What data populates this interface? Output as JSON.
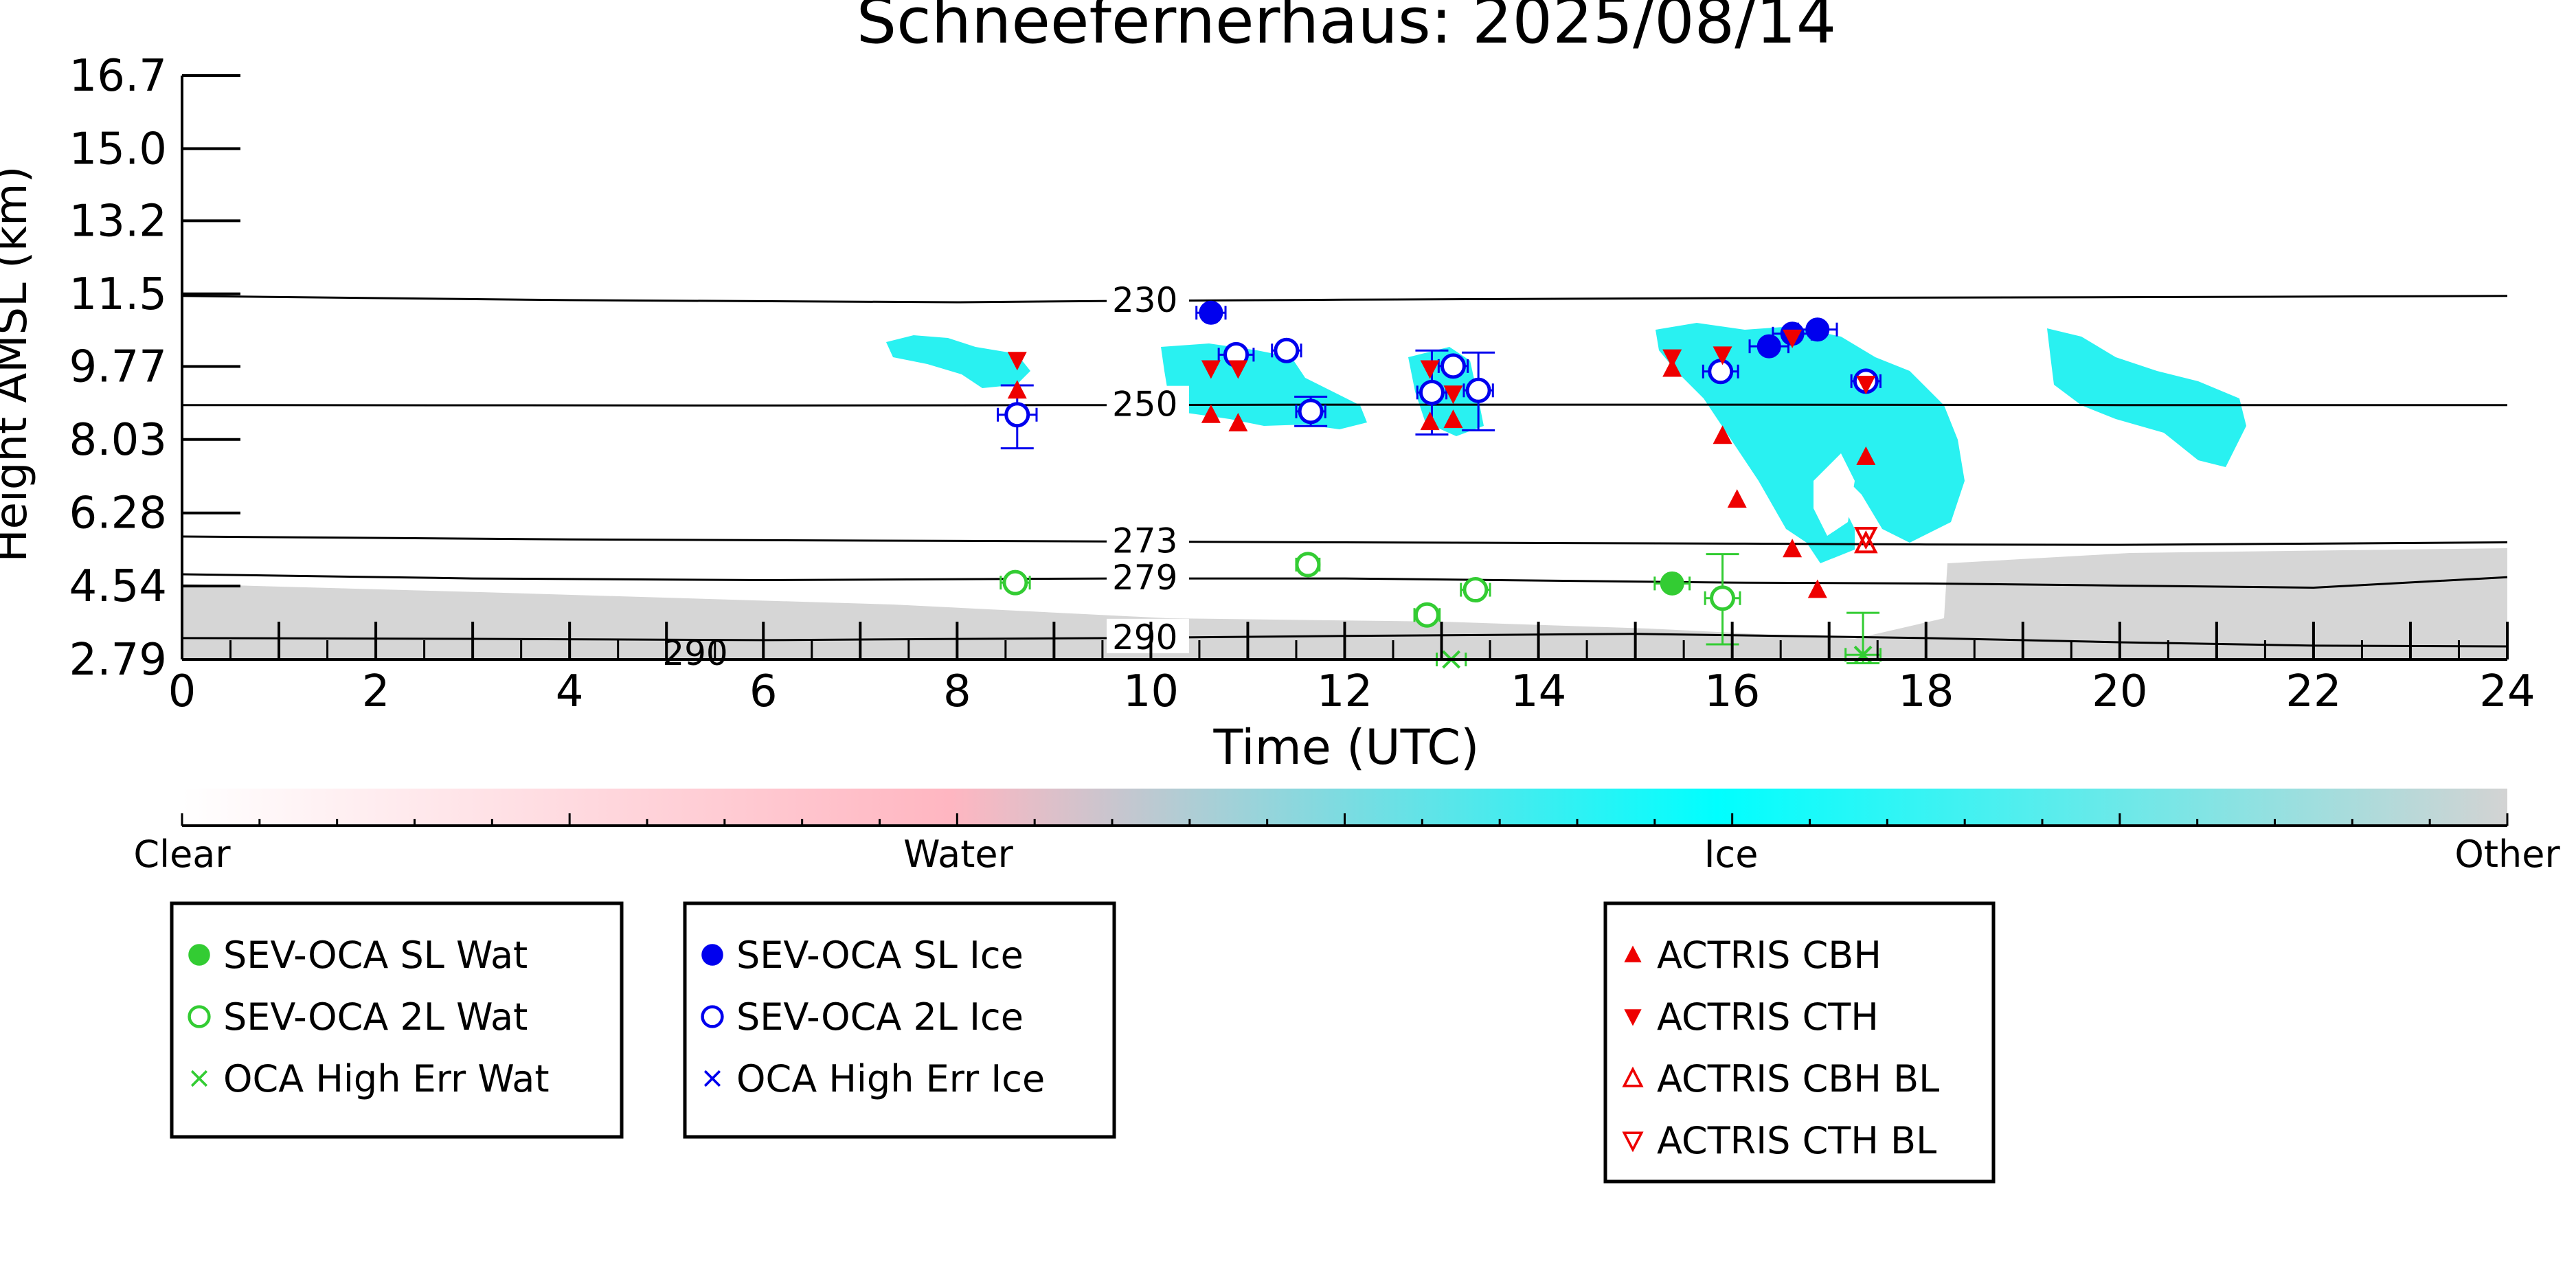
{
  "chart_data": {
    "type": "scatter",
    "title": "Schneefernerhaus: 2025/08/14",
    "xlabel": "Time (UTC)",
    "ylabel": "Height AMSL (km)",
    "xlim": [
      0,
      24
    ],
    "ylim": [
      2.79,
      16.7
    ],
    "x_ticks": [
      "0",
      "2",
      "4",
      "6",
      "8",
      "10",
      "12",
      "14",
      "16",
      "18",
      "20",
      "22",
      "24"
    ],
    "y_ticks": [
      "2.79",
      "4.54",
      "6.28",
      "8.03",
      "9.77",
      "11.5",
      "13.2",
      "15.0",
      "16.7"
    ],
    "y_tick_values": [
      2.79,
      4.54,
      6.28,
      8.03,
      9.77,
      11.5,
      13.24,
      14.96,
      16.7
    ],
    "colorbar": {
      "labels": [
        "Clear",
        "Water",
        "Ice",
        "Other"
      ],
      "colors": [
        "#ffffff",
        "#ffb6c1",
        "#00ffff",
        "#d3d3d3"
      ]
    },
    "isotherms": [
      {
        "label": "230",
        "x": [
          0,
          4,
          8,
          9.6,
          12,
          16,
          20,
          24
        ],
        "y": [
          11.45,
          11.35,
          11.3,
          11.33,
          11.36,
          11.4,
          11.42,
          11.45
        ]
      },
      {
        "label": "250",
        "x": [
          0,
          6,
          9.6,
          12,
          16,
          20,
          24
        ],
        "y": [
          8.85,
          8.84,
          8.85,
          8.86,
          8.86,
          8.85,
          8.85
        ]
      },
      {
        "label": "273",
        "x": [
          0,
          4,
          9.6,
          12,
          16,
          18,
          20,
          22,
          24
        ],
        "y": [
          5.72,
          5.65,
          5.6,
          5.58,
          5.55,
          5.53,
          5.52,
          5.55,
          5.58
        ]
      },
      {
        "label": "279",
        "x": [
          0,
          3,
          6,
          9.6,
          12,
          16,
          18,
          20,
          22,
          24
        ],
        "y": [
          4.82,
          4.72,
          4.68,
          4.72,
          4.72,
          4.62,
          4.6,
          4.55,
          4.5,
          4.75
        ]
      },
      {
        "label": "290",
        "x": [
          0,
          3,
          6,
          9.6,
          12,
          15,
          18,
          20,
          22,
          24
        ],
        "y": [
          3.3,
          3.28,
          3.25,
          3.3,
          3.35,
          3.4,
          3.3,
          3.2,
          3.12,
          3.1
        ]
      }
    ],
    "extra_labels": [
      {
        "text": "290",
        "x": 5.1,
        "y": 2.79
      }
    ],
    "series": [
      {
        "name": "SEV-OCA SL Wat",
        "color": "#33cc33",
        "marker": "filled-circle",
        "points": [
          {
            "x": 15.38,
            "y": 4.6,
            "xerr": 0.18
          }
        ]
      },
      {
        "name": "SEV-OCA 2L Wat",
        "color": "#33cc33",
        "marker": "open-circle",
        "points": [
          {
            "x": 8.6,
            "y": 4.62,
            "xerr": 0.15
          },
          {
            "x": 11.62,
            "y": 5.05,
            "xerr": 0.12
          },
          {
            "x": 12.85,
            "y": 3.85,
            "xerr": 0.13
          },
          {
            "x": 13.35,
            "y": 4.45,
            "xerr": 0.15
          },
          {
            "x": 15.9,
            "y": 4.25,
            "yerr_low": 1.1,
            "yerr_high": 1.05,
            "xerr": 0.18
          }
        ]
      },
      {
        "name": "OCA High Err Wat",
        "color": "#33cc33",
        "marker": "x",
        "points": [
          {
            "x": 13.1,
            "y": 2.79,
            "xerr": 0.15
          },
          {
            "x": 17.35,
            "y": 2.9,
            "yerr_low": 0.2,
            "yerr_high": 1.0,
            "xerr": 0.18
          }
        ]
      },
      {
        "name": "SEV-OCA SL Ice",
        "color": "#0000ee",
        "marker": "filled-circle",
        "points": [
          {
            "x": 10.62,
            "y": 11.05,
            "xerr": 0.15
          },
          {
            "x": 16.38,
            "y": 10.25,
            "xerr": 0.2
          },
          {
            "x": 16.62,
            "y": 10.55,
            "xerr": 0.2
          },
          {
            "x": 16.88,
            "y": 10.65,
            "xerr": 0.2
          }
        ]
      },
      {
        "name": "SEV-OCA 2L Ice",
        "color": "#0000ee",
        "marker": "open-circle",
        "points": [
          {
            "x": 8.62,
            "y": 8.62,
            "yerr_low": 0.8,
            "yerr_high": 0.7,
            "xerr": 0.2
          },
          {
            "x": 10.88,
            "y": 10.05,
            "xerr": 0.18
          },
          {
            "x": 11.4,
            "y": 10.15,
            "xerr": 0.15
          },
          {
            "x": 11.65,
            "y": 8.7,
            "yerr_low": 0.35,
            "yerr_high": 0.35,
            "xerr": 0.15
          },
          {
            "x": 12.9,
            "y": 9.15,
            "yerr_low": 1.0,
            "yerr_high": 1.0,
            "xerr": 0.15
          },
          {
            "x": 13.12,
            "y": 9.78,
            "xerr": 0.15
          },
          {
            "x": 13.38,
            "y": 9.2,
            "yerr_low": 0.95,
            "yerr_high": 0.9,
            "xerr": 0.15
          },
          {
            "x": 15.88,
            "y": 9.65,
            "xerr": 0.18
          },
          {
            "x": 17.38,
            "y": 9.42,
            "xerr": 0.15
          }
        ]
      },
      {
        "name": "OCA High Err Ice",
        "color": "#0000ee",
        "marker": "x",
        "points": []
      },
      {
        "name": "ACTRIS CBH",
        "color": "#ee0000",
        "marker": "triangle-up",
        "points": [
          {
            "x": 8.62,
            "y": 9.2
          },
          {
            "x": 10.62,
            "y": 8.62
          },
          {
            "x": 10.9,
            "y": 8.42
          },
          {
            "x": 12.88,
            "y": 8.45
          },
          {
            "x": 13.12,
            "y": 8.5
          },
          {
            "x": 15.38,
            "y": 9.72
          },
          {
            "x": 15.9,
            "y": 8.12
          },
          {
            "x": 16.05,
            "y": 6.6
          },
          {
            "x": 16.62,
            "y": 5.42
          },
          {
            "x": 16.88,
            "y": 4.45
          },
          {
            "x": 17.38,
            "y": 7.62
          }
        ]
      },
      {
        "name": "ACTRIS CTH",
        "color": "#ee0000",
        "marker": "triangle-down",
        "points": [
          {
            "x": 8.62,
            "y": 9.92
          },
          {
            "x": 10.62,
            "y": 9.72
          },
          {
            "x": 10.9,
            "y": 9.72
          },
          {
            "x": 12.88,
            "y": 9.72
          },
          {
            "x": 13.12,
            "y": 9.12
          },
          {
            "x": 15.38,
            "y": 9.98
          },
          {
            "x": 15.9,
            "y": 10.05
          },
          {
            "x": 16.62,
            "y": 10.45
          },
          {
            "x": 17.38,
            "y": 9.35
          }
        ]
      },
      {
        "name": "ACTRIS CBH BL",
        "color": "#ee0000",
        "marker": "open-triangle-up",
        "points": [
          {
            "x": 17.38,
            "y": 5.55
          }
        ]
      },
      {
        "name": "ACTRIS CTH BL",
        "color": "#ee0000",
        "marker": "open-triangle-down",
        "points": [
          {
            "x": 17.38,
            "y": 5.72
          }
        ]
      }
    ],
    "legend_groups": [
      [
        "SEV-OCA SL Wat",
        "SEV-OCA 2L Wat",
        "OCA High Err Wat"
      ],
      [
        "SEV-OCA SL Ice",
        "SEV-OCA 2L Ice",
        "OCA High Err Ice"
      ],
      [
        "ACTRIS CBH",
        "ACTRIS CTH",
        "ACTRIS CBH BL",
        "ACTRIS CTH BL"
      ]
    ],
    "legend_placement": "bottom",
    "grid": false
  }
}
